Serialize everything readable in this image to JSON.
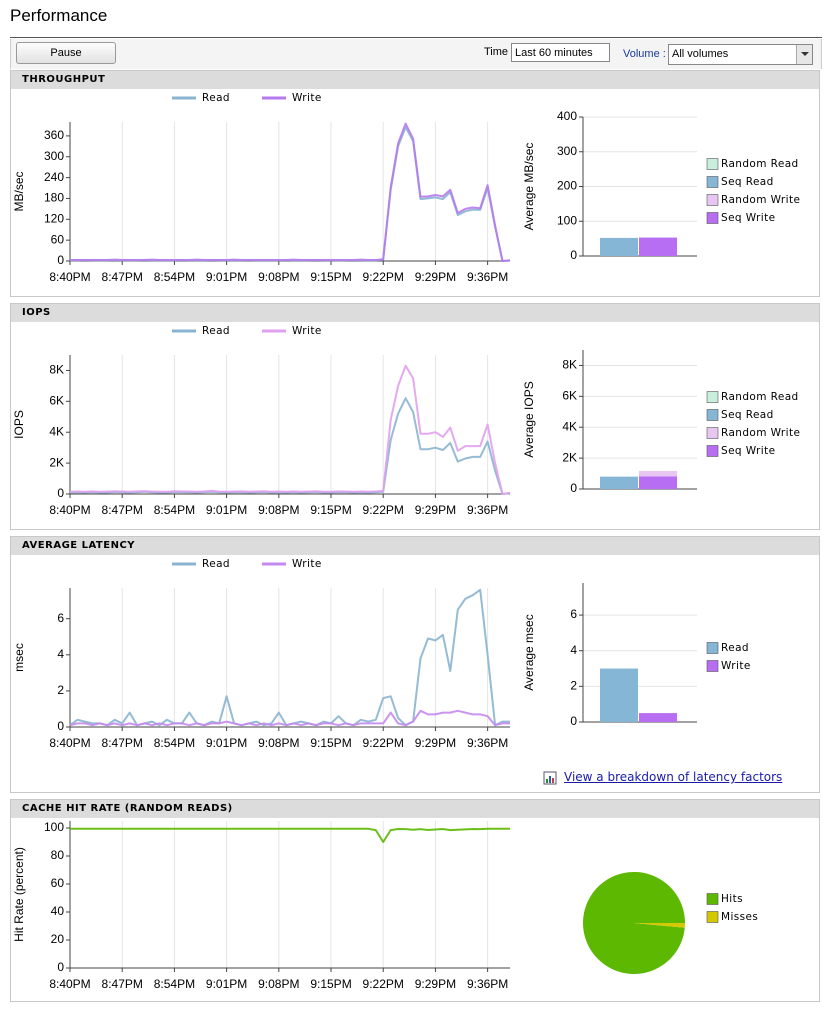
{
  "header": {
    "title": "Performance"
  },
  "toolbar": {
    "pause": "Pause",
    "time_label": "Time",
    "time_value": "Last 60 minutes",
    "volume_label": "Volume :",
    "volume_value": "All volumes"
  },
  "panels": [
    {
      "title": "THROUGHPUT"
    },
    {
      "title": "IOPS"
    },
    {
      "title": "AVERAGE LATENCY"
    },
    {
      "title": "CACHE HIT RATE (RANDOM READS)"
    }
  ],
  "link": "View a breakdown of latency factors",
  "chart_data": [
    {
      "type": "line",
      "ylabel": "MB/sec",
      "legend": "top",
      "xgrid": true,
      "categories": [
        "8:40PM",
        null,
        null,
        null,
        null,
        null,
        null,
        "8:47PM",
        null,
        null,
        null,
        null,
        null,
        null,
        "8:54PM",
        null,
        null,
        null,
        null,
        null,
        null,
        "9:01PM",
        null,
        null,
        null,
        null,
        null,
        null,
        "9:08PM",
        null,
        null,
        null,
        null,
        null,
        null,
        "9:15PM",
        null,
        null,
        null,
        null,
        null,
        null,
        "9:22PM",
        null,
        null,
        null,
        null,
        null,
        null,
        "9:29PM",
        null,
        null,
        null,
        null,
        null,
        null,
        "9:36PM",
        null,
        null,
        null
      ],
      "ylim": [
        0,
        400
      ],
      "yticks": [
        0,
        60,
        120,
        180,
        240,
        300,
        360
      ],
      "series": [
        {
          "name": "Read",
          "color": "#8ab4d0",
          "values": [
            2,
            2,
            3,
            2,
            2,
            2,
            3,
            2,
            2,
            2,
            3,
            2,
            2,
            2,
            2,
            3,
            2,
            2,
            2,
            3,
            2,
            2,
            2,
            2,
            3,
            2,
            2,
            2,
            2,
            3,
            2,
            2,
            2,
            3,
            2,
            2,
            2,
            2,
            3,
            2,
            2,
            2,
            4,
            205,
            330,
            385,
            345,
            178,
            180,
            183,
            178,
            198,
            132,
            143,
            148,
            147,
            210,
            98,
            0,
            1
          ]
        },
        {
          "name": "Write",
          "color": "#b57af0",
          "values": [
            3,
            3,
            3,
            3,
            3,
            3,
            4,
            3,
            3,
            3,
            3,
            4,
            3,
            3,
            3,
            3,
            3,
            4,
            3,
            3,
            3,
            3,
            4,
            3,
            3,
            3,
            3,
            3,
            3,
            3,
            4,
            3,
            3,
            3,
            3,
            3,
            3,
            3,
            3,
            4,
            3,
            3,
            5,
            212,
            338,
            395,
            352,
            185,
            186,
            190,
            186,
            205,
            138,
            150,
            154,
            152,
            218,
            102,
            0,
            2
          ]
        }
      ]
    },
    {
      "type": "bar",
      "ylabel": "Average MB/sec",
      "legend": "right",
      "ygrid": true,
      "categories": [
        null,
        null
      ],
      "ylim": [
        0,
        400
      ],
      "yticks": [
        0,
        100,
        200,
        300,
        400
      ],
      "series": [
        {
          "name": "Random Read",
          "color": "#c9eedd",
          "values": [
            0,
            0
          ]
        },
        {
          "name": "Seq Read",
          "color": "#86b6d6",
          "values": [
            52,
            0
          ]
        },
        {
          "name": "Random Write",
          "color": "#e8c6f2",
          "values": [
            0,
            0
          ]
        },
        {
          "name": "Seq Write",
          "color": "#b76ef2",
          "values": [
            0,
            53
          ]
        }
      ]
    },
    {
      "type": "line",
      "ylabel": "IOPS",
      "legend": "top",
      "xgrid": true,
      "categories": [
        "8:40PM",
        null,
        null,
        null,
        null,
        null,
        null,
        "8:47PM",
        null,
        null,
        null,
        null,
        null,
        null,
        "8:54PM",
        null,
        null,
        null,
        null,
        null,
        null,
        "9:01PM",
        null,
        null,
        null,
        null,
        null,
        null,
        "9:08PM",
        null,
        null,
        null,
        null,
        null,
        null,
        "9:15PM",
        null,
        null,
        null,
        null,
        null,
        null,
        "9:22PM",
        null,
        null,
        null,
        null,
        null,
        null,
        "9:29PM",
        null,
        null,
        null,
        null,
        null,
        null,
        "9:36PM",
        null,
        null,
        null
      ],
      "ylim": [
        0,
        9000
      ],
      "yticks": [
        0,
        {
          "value": 2000,
          "label": "2K"
        },
        {
          "value": 4000,
          "label": "4K"
        },
        {
          "value": 6000,
          "label": "6K"
        },
        {
          "value": 8000,
          "label": "8K"
        }
      ],
      "series": [
        {
          "name": "Read",
          "color": "#8ab4d0",
          "values": [
            100,
            110,
            100,
            120,
            100,
            100,
            130,
            110,
            100,
            120,
            140,
            110,
            100,
            100,
            130,
            120,
            110,
            100,
            120,
            150,
            110,
            100,
            110,
            120,
            100,
            110,
            130,
            100,
            110,
            100,
            120,
            100,
            110,
            130,
            100,
            100,
            120,
            110,
            100,
            110,
            100,
            120,
            150,
            3500,
            5200,
            6200,
            5300,
            2900,
            2900,
            3000,
            2850,
            3300,
            2100,
            2300,
            2400,
            2400,
            3400,
            1500,
            0,
            50
          ]
        },
        {
          "name": "Write",
          "color": "#e0a0f0",
          "values": [
            150,
            160,
            150,
            170,
            150,
            160,
            180,
            160,
            150,
            170,
            190,
            160,
            150,
            150,
            180,
            170,
            160,
            150,
            170,
            200,
            160,
            150,
            160,
            170,
            150,
            160,
            180,
            150,
            160,
            150,
            170,
            150,
            160,
            180,
            150,
            150,
            170,
            160,
            150,
            160,
            150,
            170,
            200,
            4800,
            7000,
            8300,
            7500,
            3900,
            3900,
            4000,
            3700,
            4300,
            2800,
            3100,
            3100,
            3100,
            4500,
            2000,
            0,
            80
          ]
        }
      ]
    },
    {
      "type": "bar",
      "ylabel": "Average IOPS",
      "legend": "right",
      "ygrid": true,
      "categories": [
        null,
        null
      ],
      "ylim": [
        0,
        9000
      ],
      "yticks": [
        0,
        {
          "value": 2000,
          "label": "2K"
        },
        {
          "value": 4000,
          "label": "4K"
        },
        {
          "value": 6000,
          "label": "6K"
        },
        {
          "value": 8000,
          "label": "8K"
        }
      ],
      "series": [
        {
          "name": "Random Read",
          "color": "#c9eedd",
          "values": [
            0,
            0
          ]
        },
        {
          "name": "Seq Read",
          "color": "#86b6d6",
          "values": [
            800,
            0
          ]
        },
        {
          "name": "Random Write",
          "color": "#e8c6f2",
          "values": [
            0,
            350
          ]
        },
        {
          "name": "Seq Write",
          "color": "#b76ef2",
          "values": [
            0,
            820
          ]
        }
      ]
    },
    {
      "type": "line",
      "ylabel": "msec",
      "legend": "top",
      "xgrid": true,
      "categories": [
        "8:40PM",
        null,
        null,
        null,
        null,
        null,
        null,
        "8:47PM",
        null,
        null,
        null,
        null,
        null,
        null,
        "8:54PM",
        null,
        null,
        null,
        null,
        null,
        null,
        "9:01PM",
        null,
        null,
        null,
        null,
        null,
        null,
        "9:08PM",
        null,
        null,
        null,
        null,
        null,
        null,
        "9:15PM",
        null,
        null,
        null,
        null,
        null,
        null,
        "9:22PM",
        null,
        null,
        null,
        null,
        null,
        null,
        "9:29PM",
        null,
        null,
        null,
        null,
        null,
        null,
        "9:36PM",
        null,
        null,
        null
      ],
      "ylim": [
        0,
        7.7
      ],
      "yticks": [
        0,
        2,
        4,
        6
      ],
      "series": [
        {
          "name": "Read",
          "color": "#8ab4d0",
          "values": [
            0.1,
            0.4,
            0.3,
            0.2,
            0.2,
            0.1,
            0.4,
            0.2,
            0.8,
            0.1,
            0.2,
            0.3,
            0.1,
            0.4,
            0.2,
            0.2,
            0.8,
            0.2,
            0.1,
            0.3,
            0.2,
            1.7,
            0.2,
            0.1,
            0.2,
            0.3,
            0.1,
            0.2,
            0.8,
            0.1,
            0.2,
            0.3,
            0.2,
            0.1,
            0.3,
            0.2,
            0.6,
            0.2,
            0.1,
            0.4,
            0.3,
            0.4,
            1.6,
            1.7,
            0.5,
            0.1,
            0.3,
            3.8,
            4.9,
            4.8,
            5.1,
            3.1,
            6.5,
            7.1,
            7.3,
            7.6,
            4.0,
            0.1,
            0.3,
            0.3
          ]
        },
        {
          "name": "Write",
          "color": "#c48af0",
          "values": [
            0.1,
            0.2,
            0.2,
            0.1,
            0.2,
            0.1,
            0.2,
            0.1,
            0.2,
            0.1,
            0.2,
            0.1,
            0.2,
            0.1,
            0.2,
            0.2,
            0.1,
            0.2,
            0.1,
            0.2,
            0.2,
            0.3,
            0.2,
            0.1,
            0.2,
            0.1,
            0.2,
            0.1,
            0.2,
            0.1,
            0.2,
            0.1,
            0.2,
            0.1,
            0.2,
            0.2,
            0.1,
            0.2,
            0.1,
            0.2,
            0.2,
            0.2,
            0.2,
            0.8,
            0.2,
            0.1,
            0.3,
            0.9,
            0.7,
            0.7,
            0.8,
            0.8,
            0.9,
            0.8,
            0.7,
            0.7,
            0.6,
            0.1,
            0.2,
            0.2
          ]
        }
      ]
    },
    {
      "type": "bar",
      "ylabel": "Average msec",
      "legend": "right",
      "ygrid": true,
      "categories": [
        null,
        null
      ],
      "ylim": [
        0,
        7.8
      ],
      "yticks": [
        0,
        2,
        4,
        6
      ],
      "series": [
        {
          "name": "Read",
          "color": "#86b6d6",
          "values": [
            3.0,
            0
          ]
        },
        {
          "name": "Write",
          "color": "#b76ef2",
          "values": [
            0,
            0.5
          ]
        }
      ]
    },
    {
      "type": "line",
      "ylabel": "Hit Rate (percent)",
      "xgrid": true,
      "categories": [
        "8:40PM",
        null,
        null,
        null,
        null,
        null,
        null,
        "8:47PM",
        null,
        null,
        null,
        null,
        null,
        null,
        "8:54PM",
        null,
        null,
        null,
        null,
        null,
        null,
        "9:01PM",
        null,
        null,
        null,
        null,
        null,
        null,
        "9:08PM",
        null,
        null,
        null,
        null,
        null,
        null,
        "9:15PM",
        null,
        null,
        null,
        null,
        null,
        null,
        "9:22PM",
        null,
        null,
        null,
        null,
        null,
        null,
        "9:29PM",
        null,
        null,
        null,
        null,
        null,
        null,
        "9:36PM",
        null,
        null,
        null
      ],
      "ylim": [
        0,
        105
      ],
      "yticks": [
        0,
        20,
        40,
        60,
        80,
        100
      ],
      "series": [
        {
          "color": "#5cb800",
          "values": [
            99.5,
            99.5,
            99.4,
            99.5,
            99.5,
            99.4,
            99.5,
            99.5,
            99.5,
            99.4,
            99.5,
            99.5,
            99.4,
            99.5,
            99.5,
            99.5,
            99.4,
            99.5,
            99.5,
            99.4,
            99.5,
            99.5,
            99.5,
            99.4,
            99.5,
            99.5,
            99.4,
            99.5,
            99.5,
            99.5,
            99.4,
            99.5,
            99.5,
            99.4,
            99.5,
            99.5,
            99.5,
            99.4,
            99.5,
            99.5,
            99.4,
            98.5,
            90,
            98.5,
            99.3,
            99.2,
            98.8,
            99.2,
            98.6,
            98.9,
            99.3,
            98.5,
            98.7,
            99.0,
            99.3,
            99.2,
            99.4,
            99.5,
            99.5,
            99.5
          ]
        }
      ]
    },
    {
      "type": "pie",
      "legend": "right",
      "categories": [
        "Hits",
        "Misses"
      ],
      "values": [
        98.5,
        1.5
      ],
      "colors": [
        "#5cb800",
        "#d4c800"
      ]
    }
  ]
}
